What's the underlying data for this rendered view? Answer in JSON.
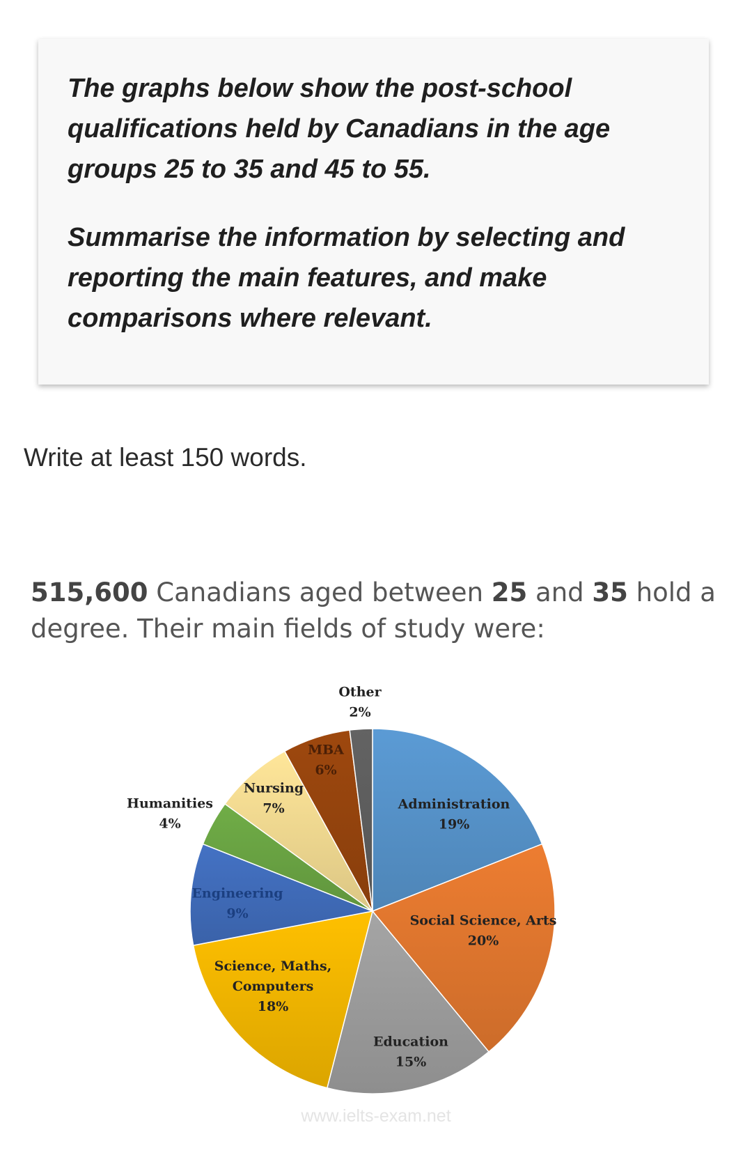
{
  "task": {
    "paragraph1": "The graphs below show the post-school qualifications held by Canadians in the age groups 25 to 35 and 45 to 55.",
    "paragraph2": "Summarise the information by selecting and reporting the main features, and make comparisons where relevant."
  },
  "word_count": "Write at least 150 words.",
  "intro": {
    "number": "515,600",
    "text1": " Canadians aged between ",
    "age_from": "25",
    "text2": " and ",
    "age_to": "35",
    "text3": " hold a degree. Their main fields of study were:"
  },
  "chart_data": {
    "type": "pie",
    "slices": [
      {
        "name": "Administration",
        "value": 19,
        "label": "19%",
        "color": "#5b9bd5"
      },
      {
        "name": "Social Science, Arts",
        "value": 20,
        "label": "20%",
        "color": "#ed7d31"
      },
      {
        "name": "Education",
        "value": 15,
        "label": "15%",
        "color": "#a5a5a5"
      },
      {
        "name": "Science, Maths, Computers",
        "value": 18,
        "label": "18%",
        "color": "#ffc000"
      },
      {
        "name": "Engineering",
        "value": 9,
        "label": "9%",
        "color": "#4472c4"
      },
      {
        "name": "Humanities",
        "value": 4,
        "label": "4%",
        "color": "#70ad47"
      },
      {
        "name": "Nursing",
        "value": 7,
        "label": "7%",
        "color": "#ffe699"
      },
      {
        "name": "MBA",
        "value": 6,
        "label": "6%",
        "color": "#9e480e"
      },
      {
        "name": "Other",
        "value": 2,
        "label": "2%",
        "color": "#636363"
      }
    ]
  },
  "watermark": "www.ielts-exam.net"
}
